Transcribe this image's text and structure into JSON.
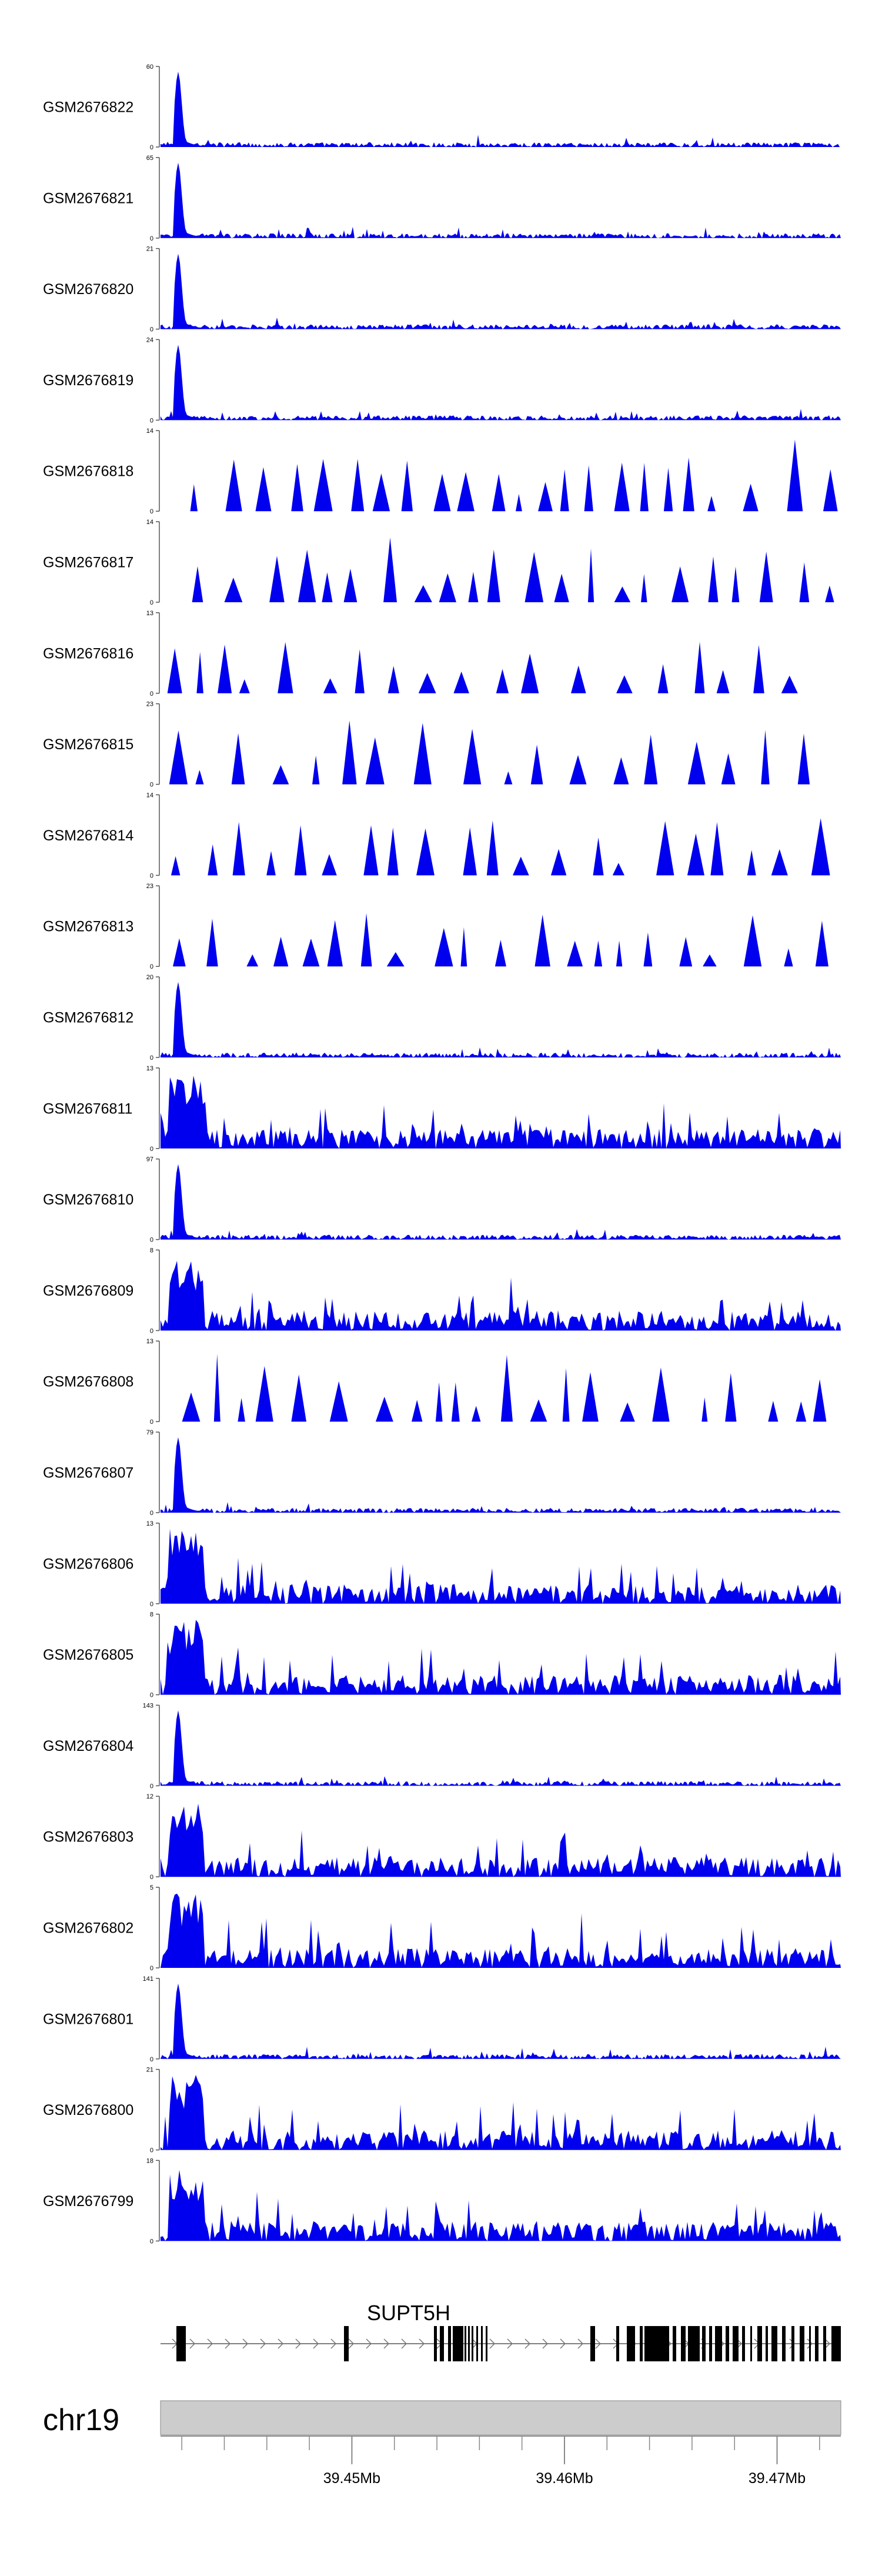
{
  "chart_data": {
    "type": "area",
    "title": "",
    "chromosome": "chr19",
    "x_range_bp": [
      39441000,
      39473000
    ],
    "x_ticks": [
      {
        "pos": 39450000,
        "label": "39.45Mb"
      },
      {
        "pos": 39460000,
        "label": "39.46Mb"
      },
      {
        "pos": 39470000,
        "label": "39.47Mb"
      }
    ],
    "gene": {
      "name": "SUPT5H",
      "strand": "+"
    },
    "tracks": [
      {
        "label": "GSM2676822",
        "ymax": 60,
        "profile": "peak"
      },
      {
        "label": "GSM2676821",
        "ymax": 65,
        "profile": "peak"
      },
      {
        "label": "GSM2676820",
        "ymax": 21,
        "profile": "peak"
      },
      {
        "label": "GSM2676819",
        "ymax": 24,
        "profile": "peak"
      },
      {
        "label": "GSM2676818",
        "ymax": 14,
        "profile": "sparse"
      },
      {
        "label": "GSM2676817",
        "ymax": 14,
        "profile": "sparse"
      },
      {
        "label": "GSM2676816",
        "ymax": 13,
        "profile": "sparse"
      },
      {
        "label": "GSM2676815",
        "ymax": 23,
        "profile": "sparse"
      },
      {
        "label": "GSM2676814",
        "ymax": 14,
        "profile": "sparse"
      },
      {
        "label": "GSM2676813",
        "ymax": 23,
        "profile": "sparse"
      },
      {
        "label": "GSM2676812",
        "ymax": 20,
        "profile": "peak"
      },
      {
        "label": "GSM2676811",
        "ymax": 13,
        "profile": "dense"
      },
      {
        "label": "GSM2676810",
        "ymax": 97,
        "profile": "peak"
      },
      {
        "label": "GSM2676809",
        "ymax": 8,
        "profile": "dense"
      },
      {
        "label": "GSM2676808",
        "ymax": 13,
        "profile": "sparse"
      },
      {
        "label": "GSM2676807",
        "ymax": 79,
        "profile": "peak"
      },
      {
        "label": "GSM2676806",
        "ymax": 13,
        "profile": "dense"
      },
      {
        "label": "GSM2676805",
        "ymax": 8,
        "profile": "dense"
      },
      {
        "label": "GSM2676804",
        "ymax": 143,
        "profile": "peak"
      },
      {
        "label": "GSM2676803",
        "ymax": 12,
        "profile": "dense"
      },
      {
        "label": "GSM2676802",
        "ymax": 5,
        "profile": "dense"
      },
      {
        "label": "GSM2676801",
        "ymax": 141,
        "profile": "peak"
      },
      {
        "label": "GSM2676800",
        "ymax": 21,
        "profile": "dense"
      },
      {
        "label": "GSM2676799",
        "ymax": 18,
        "profile": "dense"
      }
    ],
    "colors": {
      "signal": "#0000ee",
      "axis": "#555555",
      "gene": "#000000",
      "ideogram": "#cccccc"
    }
  }
}
